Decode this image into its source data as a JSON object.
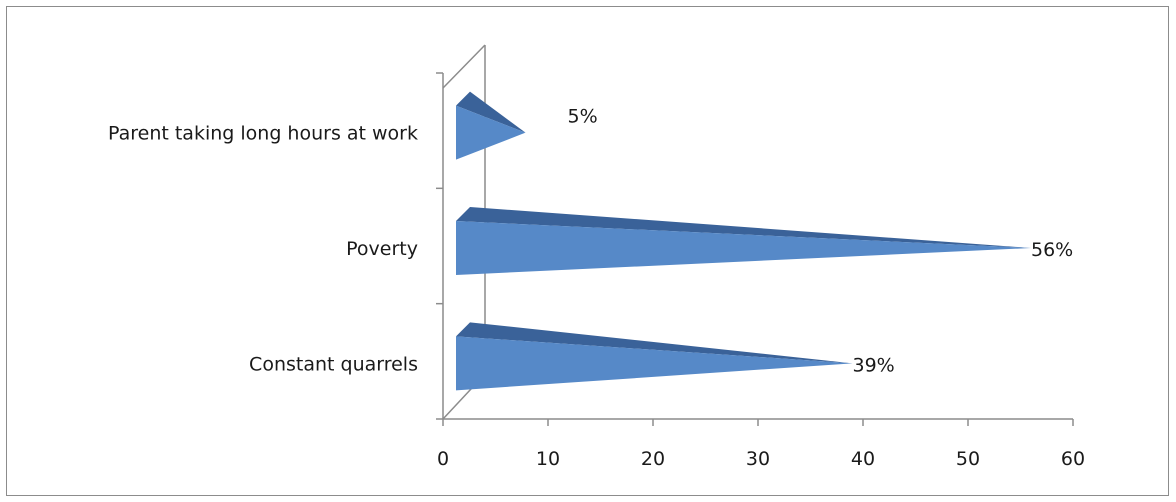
{
  "chart_data": {
    "type": "bar",
    "orientation": "horizontal",
    "style": "3d-cone",
    "categories": [
      "Parent taking long hours at work",
      "Poverty",
      "Constant quarrels"
    ],
    "values": [
      5,
      56,
      39
    ],
    "data_labels": [
      "5%",
      "56%",
      "39%"
    ],
    "title": "",
    "xlabel": "",
    "ylabel": "",
    "xlim": [
      0,
      60
    ],
    "xticks": [
      0,
      10,
      20,
      30,
      40,
      50,
      60
    ],
    "grid": false,
    "legend": "none",
    "colors": {
      "bar_face": "#5689c8",
      "bar_top": "#3a6299",
      "axis": "#8c8c8c",
      "frame": "#8c8c8c"
    }
  }
}
